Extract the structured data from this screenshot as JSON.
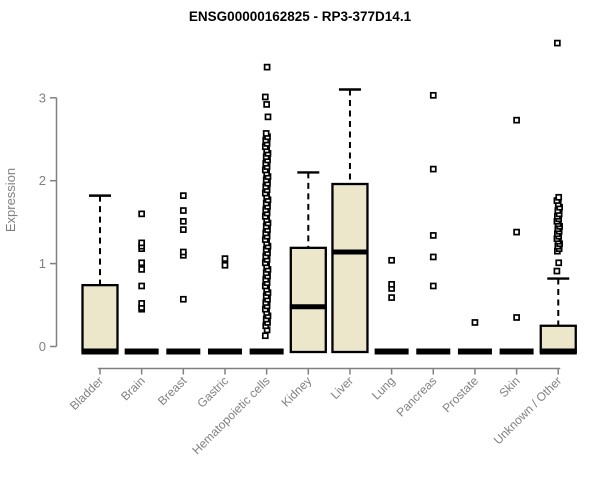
{
  "page": {
    "background": "#ffffff"
  },
  "chart_data": {
    "type": "boxplot",
    "title": "ENSG00000162825 - RP3-377D14.1",
    "xlabel": "",
    "ylabel": "Expression",
    "yticks": [
      0,
      1,
      2,
      3
    ],
    "ylim": [
      -0.15,
      3.75
    ],
    "grid": false,
    "legend": false,
    "categories": [
      "Bladder",
      "Brain",
      "Breast",
      "Gastric",
      "Hematopoietic cells",
      "Kidney",
      "Liver",
      "Lung",
      "Pancreas",
      "Prostate",
      "Skin",
      "Unknown / Other"
    ],
    "series": [
      {
        "name": "Bladder",
        "q1": 0,
        "median": 0,
        "q3": 0.74,
        "whisker_low": 0,
        "whisker_high": 1.82,
        "outliers": []
      },
      {
        "name": "Brain",
        "q1": 0,
        "median": 0,
        "q3": 0,
        "whisker_low": 0,
        "whisker_high": 0,
        "outliers": [
          0.45,
          0.47,
          0.52,
          0.73,
          0.93,
          1.01,
          1.18,
          1.21,
          1.25,
          1.6
        ]
      },
      {
        "name": "Breast",
        "q1": 0,
        "median": 0,
        "q3": 0,
        "whisker_low": 0,
        "whisker_high": 0,
        "outliers": [
          0.57,
          1.1,
          1.14,
          1.41,
          1.51,
          1.64,
          1.82
        ]
      },
      {
        "name": "Gastric",
        "q1": 0,
        "median": 0,
        "q3": 0,
        "whisker_low": 0,
        "whisker_high": 0,
        "outliers": [
          0.98,
          1.06
        ]
      },
      {
        "name": "Hematopoietic cells",
        "q1": 0,
        "median": 0,
        "q3": 0,
        "whisker_low": 0,
        "whisker_high": 0,
        "outliers": [
          0.13,
          0.2,
          0.25,
          0.29,
          0.33,
          0.37,
          0.41,
          0.45,
          0.49,
          0.53,
          0.57,
          0.61,
          0.65,
          0.69,
          0.73,
          0.77,
          0.81,
          0.85,
          0.89,
          0.93,
          0.97,
          1.01,
          1.05,
          1.09,
          1.13,
          1.17,
          1.21,
          1.25,
          1.29,
          1.33,
          1.37,
          1.41,
          1.45,
          1.49,
          1.53,
          1.57,
          1.61,
          1.65,
          1.69,
          1.73,
          1.77,
          1.81,
          1.85,
          1.89,
          1.93,
          1.97,
          2.01,
          2.05,
          2.09,
          2.13,
          2.17,
          2.21,
          2.25,
          2.29,
          2.33,
          2.37,
          2.41,
          2.45,
          2.49,
          2.53,
          2.57,
          2.77,
          2.92,
          3.01,
          3.37
        ]
      },
      {
        "name": "Kidney",
        "q1": 0,
        "median": 0.48,
        "q3": 1.19,
        "whisker_low": 0,
        "whisker_high": 2.1,
        "outliers": []
      },
      {
        "name": "Liver",
        "q1": 0,
        "median": 1.14,
        "q3": 1.96,
        "whisker_low": 0,
        "whisker_high": 3.1,
        "outliers": []
      },
      {
        "name": "Lung",
        "q1": 0,
        "median": 0,
        "q3": 0,
        "whisker_low": 0,
        "whisker_high": 0,
        "outliers": [
          0.59,
          0.7,
          0.75,
          1.04
        ]
      },
      {
        "name": "Pancreas",
        "q1": 0,
        "median": 0,
        "q3": 0,
        "whisker_low": 0,
        "whisker_high": 0,
        "outliers": [
          0.73,
          1.08,
          1.34,
          2.14,
          3.03
        ]
      },
      {
        "name": "Prostate",
        "q1": 0,
        "median": 0,
        "q3": 0,
        "whisker_low": 0,
        "whisker_high": 0,
        "outliers": [
          0.29
        ]
      },
      {
        "name": "Skin",
        "q1": 0,
        "median": 0,
        "q3": 0,
        "whisker_low": 0,
        "whisker_high": 0,
        "outliers": [
          0.35,
          1.38,
          2.73
        ]
      },
      {
        "name": "Unknown / Other",
        "q1": 0,
        "median": 0,
        "q3": 0.25,
        "whisker_low": 0,
        "whisker_high": 0.82,
        "outliers": [
          0.91,
          1.01,
          1.15,
          1.18,
          1.21,
          1.24,
          1.27,
          1.3,
          1.33,
          1.36,
          1.39,
          1.42,
          1.45,
          1.48,
          1.51,
          1.54,
          1.57,
          1.6,
          1.64,
          1.68,
          1.72,
          1.76,
          1.8,
          3.66
        ]
      }
    ]
  },
  "colors": {
    "box_fill": "#ece7cb",
    "box_stroke": "#000000",
    "median": "#000000",
    "whisker": "#000000",
    "outlier_stroke": "#000000",
    "outlier_fill": "#ffffff",
    "axis": "#808080",
    "tick_label": "#808080",
    "title": "#000000",
    "background": "#ffffff"
  }
}
